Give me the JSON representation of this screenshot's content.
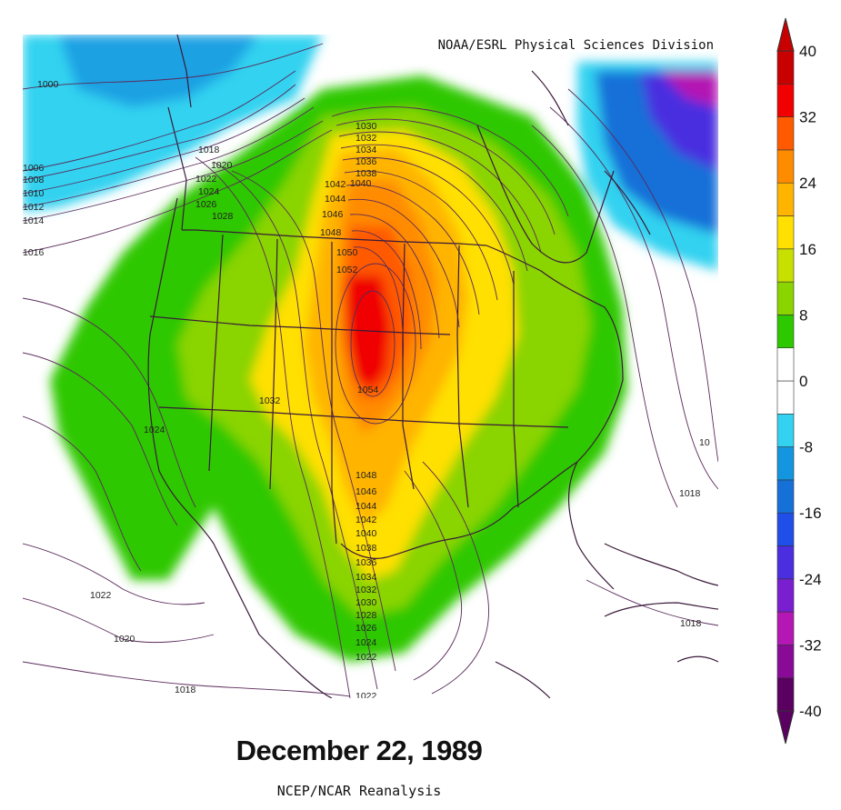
{
  "title": "December 22, 1989",
  "subtitle": "NCEP/NCAR Reanalysis",
  "credit": "NOAA/ESRL Physical Sciences Division",
  "colorbar": {
    "ticks": [
      "40",
      "32",
      "24",
      "16",
      "8",
      "0",
      "-8",
      "-16",
      "-24",
      "-32",
      "-40"
    ],
    "colors": [
      "#5a0060",
      "#8a0a98",
      "#b417b4",
      "#7a1fd0",
      "#4a2ee0",
      "#1f4fe8",
      "#1570d8",
      "#1495e0",
      "#33d2f0",
      "#ffffff",
      "#ffffff",
      "#2ec800",
      "#8ad400",
      "#c8e000",
      "#ffe000",
      "#ffb400",
      "#ff8c00",
      "#ff5a00",
      "#f00000",
      "#c80000"
    ]
  },
  "isobar_labels": [
    "1000",
    "1006",
    "1008",
    "1010",
    "1012",
    "1014",
    "1016",
    "1018",
    "1020",
    "1022",
    "1024",
    "1026",
    "1028",
    "1030",
    "1032",
    "1034",
    "1036",
    "1038",
    "1040",
    "1042",
    "1044",
    "1046",
    "1048",
    "1050",
    "1052",
    "1054",
    "1032",
    "1024",
    "1022",
    "1020",
    "1018",
    "1018",
    "1018",
    "10",
    "1048",
    "1046",
    "1044",
    "1042",
    "1040",
    "1038",
    "1036",
    "1034",
    "1032",
    "1030",
    "1028",
    "1026",
    "1024",
    "1022",
    "1022"
  ]
}
